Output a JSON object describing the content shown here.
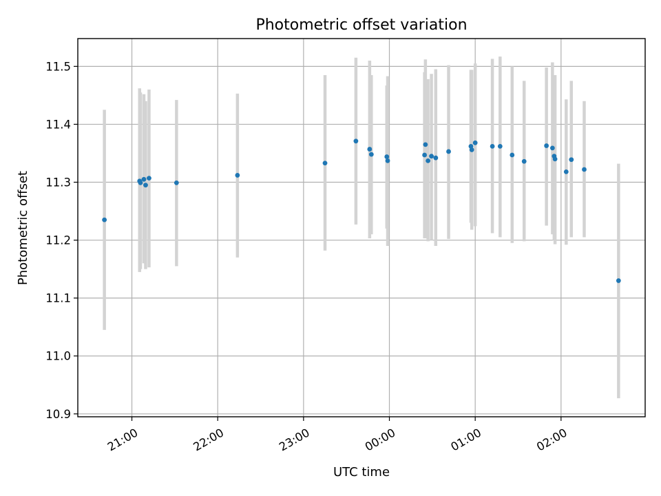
{
  "chart_data": {
    "type": "scatter",
    "title": "Photometric offset variation",
    "xlabel": "UTC time",
    "ylabel": "Photometric offset",
    "x_unit": "hours relative to 00:00 UTC",
    "xlim": [
      -3.63,
      2.98
    ],
    "ylim": [
      10.895,
      11.548
    ],
    "grid": true,
    "xticks": [
      {
        "value": -3,
        "label": "21:00"
      },
      {
        "value": -2,
        "label": "22:00"
      },
      {
        "value": -1,
        "label": "23:00"
      },
      {
        "value": 0,
        "label": "00:00"
      },
      {
        "value": 1,
        "label": "01:00"
      },
      {
        "value": 2,
        "label": "02:00"
      }
    ],
    "yticks": [
      {
        "value": 10.9,
        "label": "10.9"
      },
      {
        "value": 11.0,
        "label": "11.0"
      },
      {
        "value": 11.1,
        "label": "11.1"
      },
      {
        "value": 11.2,
        "label": "11.2"
      },
      {
        "value": 11.3,
        "label": "11.3"
      },
      {
        "value": 11.4,
        "label": "11.4"
      },
      {
        "value": 11.5,
        "label": "11.5"
      }
    ],
    "colors": {
      "marker": "#1f77b4",
      "errorbar": "#d3d3d3"
    },
    "points": [
      {
        "x": -3.32,
        "y": 11.235,
        "lo": 11.045,
        "hi": 11.425
      },
      {
        "x": -2.91,
        "y": 11.302,
        "lo": 11.145,
        "hi": 11.462
      },
      {
        "x": -2.9,
        "y": 11.299,
        "lo": 11.15,
        "hi": 11.455
      },
      {
        "x": -2.86,
        "y": 11.305,
        "lo": 11.16,
        "hi": 11.452
      },
      {
        "x": -2.84,
        "y": 11.295,
        "lo": 11.15,
        "hi": 11.44
      },
      {
        "x": -2.8,
        "y": 11.307,
        "lo": 11.153,
        "hi": 11.46
      },
      {
        "x": -2.48,
        "y": 11.299,
        "lo": 11.155,
        "hi": 11.442
      },
      {
        "x": -1.77,
        "y": 11.312,
        "lo": 11.17,
        "hi": 11.453
      },
      {
        "x": -0.75,
        "y": 11.333,
        "lo": 11.182,
        "hi": 11.485
      },
      {
        "x": -0.39,
        "y": 11.371,
        "lo": 11.227,
        "hi": 11.515
      },
      {
        "x": -0.23,
        "y": 11.357,
        "lo": 11.203,
        "hi": 11.51
      },
      {
        "x": -0.21,
        "y": 11.348,
        "lo": 11.21,
        "hi": 11.485
      },
      {
        "x": -0.03,
        "y": 11.344,
        "lo": 11.22,
        "hi": 11.467
      },
      {
        "x": -0.02,
        "y": 11.337,
        "lo": 11.19,
        "hi": 11.483
      },
      {
        "x": 0.41,
        "y": 11.347,
        "lo": 11.203,
        "hi": 11.49
      },
      {
        "x": 0.42,
        "y": 11.365,
        "lo": 11.203,
        "hi": 11.512
      },
      {
        "x": 0.45,
        "y": 11.337,
        "lo": 11.198,
        "hi": 11.478
      },
      {
        "x": 0.49,
        "y": 11.345,
        "lo": 11.2,
        "hi": 11.487
      },
      {
        "x": 0.54,
        "y": 11.342,
        "lo": 11.19,
        "hi": 11.495
      },
      {
        "x": 0.69,
        "y": 11.353,
        "lo": 11.202,
        "hi": 11.502
      },
      {
        "x": 0.95,
        "y": 11.362,
        "lo": 11.23,
        "hi": 11.494
      },
      {
        "x": 0.96,
        "y": 11.356,
        "lo": 11.218,
        "hi": 11.494
      },
      {
        "x": 1.0,
        "y": 11.368,
        "lo": 11.224,
        "hi": 11.505
      },
      {
        "x": 1.2,
        "y": 11.362,
        "lo": 11.212,
        "hi": 11.513
      },
      {
        "x": 1.29,
        "y": 11.362,
        "lo": 11.205,
        "hi": 11.517
      },
      {
        "x": 1.43,
        "y": 11.347,
        "lo": 11.195,
        "hi": 11.5
      },
      {
        "x": 1.57,
        "y": 11.336,
        "lo": 11.198,
        "hi": 11.475
      },
      {
        "x": 1.83,
        "y": 11.363,
        "lo": 11.225,
        "hi": 11.498
      },
      {
        "x": 1.9,
        "y": 11.359,
        "lo": 11.21,
        "hi": 11.507
      },
      {
        "x": 1.92,
        "y": 11.345,
        "lo": 11.2,
        "hi": 11.485
      },
      {
        "x": 1.93,
        "y": 11.34,
        "lo": 11.193,
        "hi": 11.485
      },
      {
        "x": 2.06,
        "y": 11.318,
        "lo": 11.192,
        "hi": 11.443
      },
      {
        "x": 2.12,
        "y": 11.339,
        "lo": 11.205,
        "hi": 11.475
      },
      {
        "x": 2.27,
        "y": 11.322,
        "lo": 11.205,
        "hi": 11.44
      },
      {
        "x": 2.67,
        "y": 11.13,
        "lo": 10.927,
        "hi": 11.332
      }
    ]
  }
}
